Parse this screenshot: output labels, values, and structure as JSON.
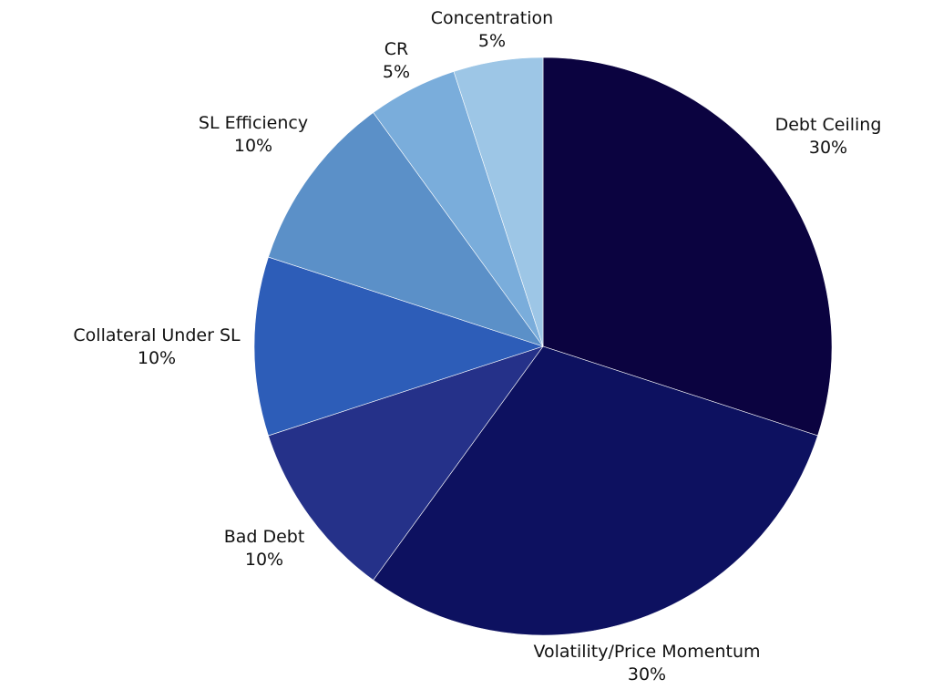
{
  "chart_data": {
    "type": "pie",
    "title": "",
    "start": "top",
    "direction": "clockwise",
    "slices": [
      {
        "label": "Debt Ceiling",
        "value": 30,
        "display": "30%",
        "color": "#0b0340"
      },
      {
        "label": "Volatility/Price Momentum",
        "value": 30,
        "display": "30%",
        "color": "#0d1160"
      },
      {
        "label": "Bad Debt",
        "value": 10,
        "display": "10%",
        "color": "#253189"
      },
      {
        "label": "Collateral Under SL",
        "value": 10,
        "display": "10%",
        "color": "#2d5db8"
      },
      {
        "label": "SL Efficiency",
        "value": 10,
        "display": "10%",
        "color": "#5b90c8"
      },
      {
        "label": "CR",
        "value": 5,
        "display": "5%",
        "color": "#7aaddb"
      },
      {
        "label": "Concentration",
        "value": 5,
        "display": "5%",
        "color": "#9dc6e6"
      }
    ]
  }
}
